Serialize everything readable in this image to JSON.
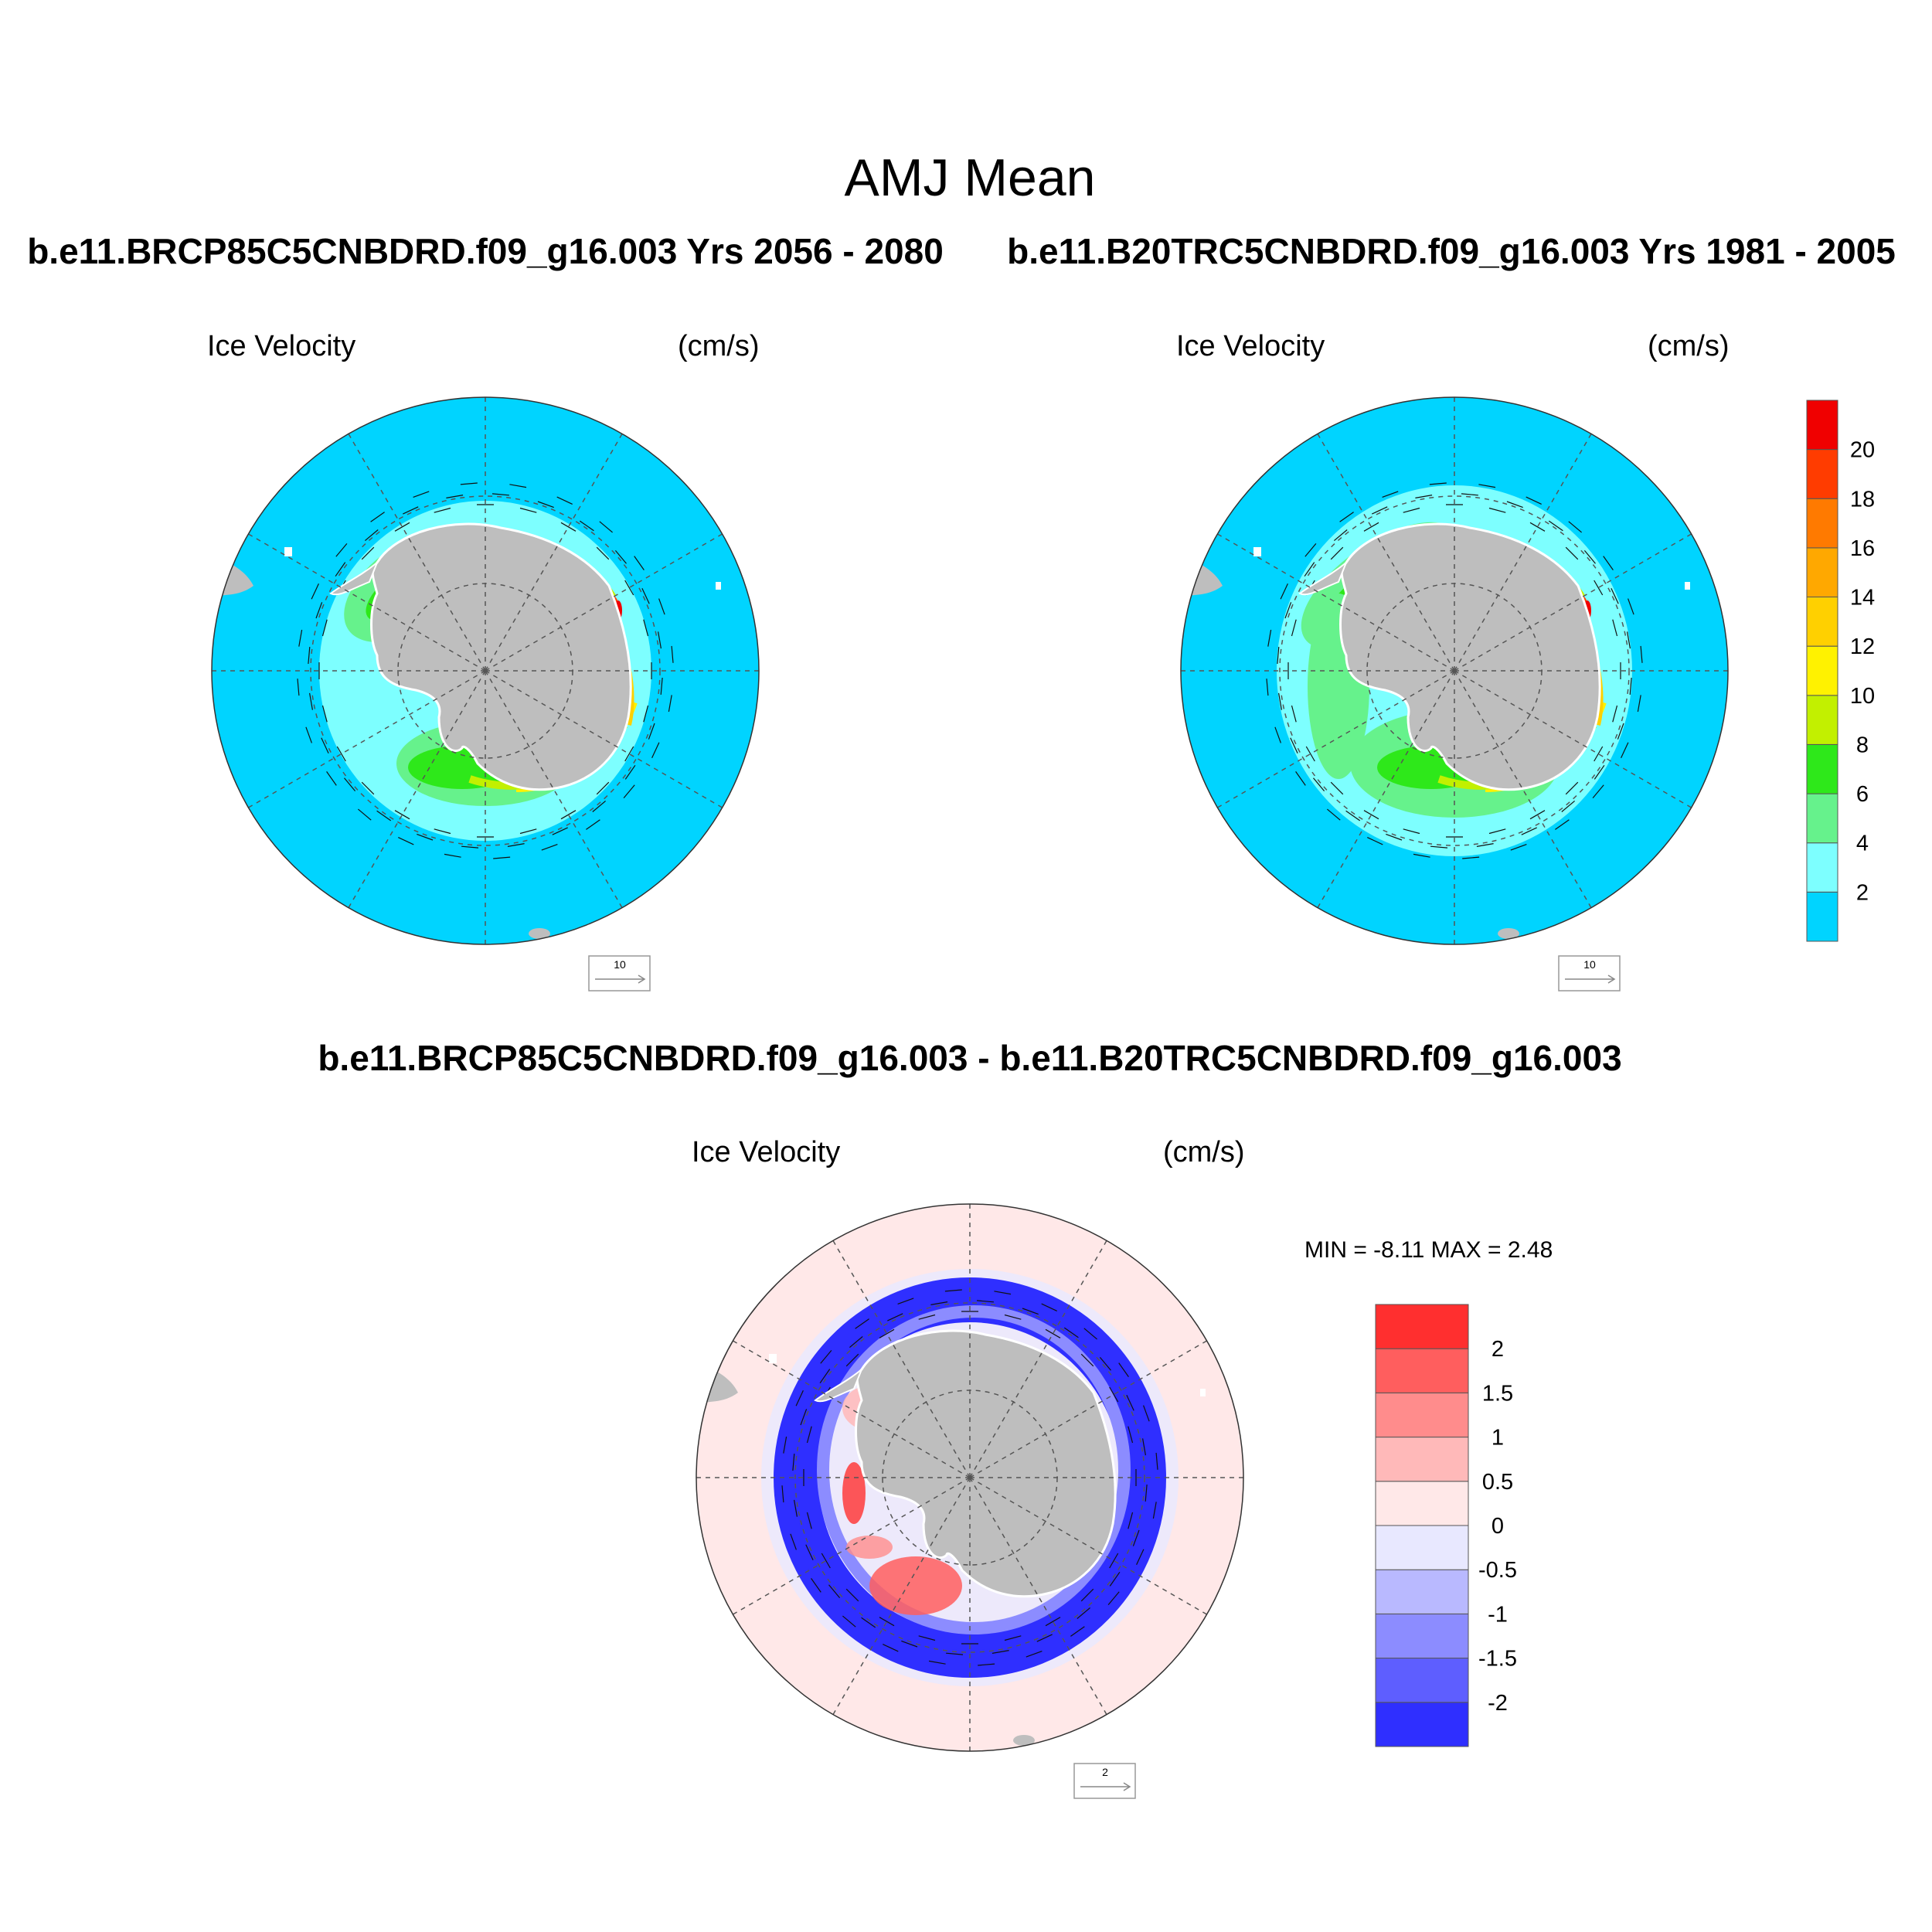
{
  "figure": {
    "title": "AMJ Mean",
    "panel_a_heading": "b.e11.BRCP85C5CNBDRD.f09_g16.003  Yrs 2056 - 2080",
    "panel_b_heading": "b.e11.B20TRC5CNBDRD.f09_g16.003  Yrs 1981 - 2005",
    "diff_heading": "b.e11.BRCP85C5CNBDRD.f09_g16.003 - b.e11.B20TRC5CNBDRD.f09_g16.003"
  },
  "panels": [
    {
      "id": "future",
      "variable": "Ice Velocity",
      "units": "(cm/s)",
      "ref_vector": "10",
      "projection": "south-polar-stereographic",
      "colormap": "velocity"
    },
    {
      "id": "historical",
      "variable": "Ice Velocity",
      "units": "(cm/s)",
      "ref_vector": "10",
      "projection": "south-polar-stereographic",
      "colormap": "velocity"
    },
    {
      "id": "difference",
      "variable": "Ice Velocity",
      "units": "(cm/s)",
      "ref_vector": "2",
      "projection": "south-polar-stereographic",
      "colormap": "difference",
      "min_label": "MIN =  -8.11 MAX =   2.48"
    }
  ],
  "colorbars": {
    "velocity": {
      "orientation": "vertical",
      "colors": [
        "#00d4ff",
        "#7dffff",
        "#66f28c",
        "#2ee81a",
        "#c2f000",
        "#fff200",
        "#ffd000",
        "#ffa800",
        "#ff7a00",
        "#ff3c00",
        "#f00000"
      ],
      "labels": [
        "2",
        "4",
        "6",
        "8",
        "10",
        "12",
        "14",
        "16",
        "18",
        "20"
      ]
    },
    "difference": {
      "orientation": "vertical",
      "colors": [
        "#2f2fff",
        "#5e5eff",
        "#8c8cff",
        "#b9b9ff",
        "#e8e8ff",
        "#ffe8e8",
        "#ffb9b9",
        "#ff8c8c",
        "#ff5e5e",
        "#ff2f2f"
      ],
      "labels": [
        "-2",
        "-1.5",
        "-1",
        "-0.5",
        "0",
        "0.5",
        "1",
        "1.5",
        "2"
      ]
    }
  },
  "map_colors": {
    "land": "#bebebe",
    "ocean_velocity": "#00d4ff",
    "ocean_difference": "#ffe8e8",
    "grid_line": "#555555"
  }
}
